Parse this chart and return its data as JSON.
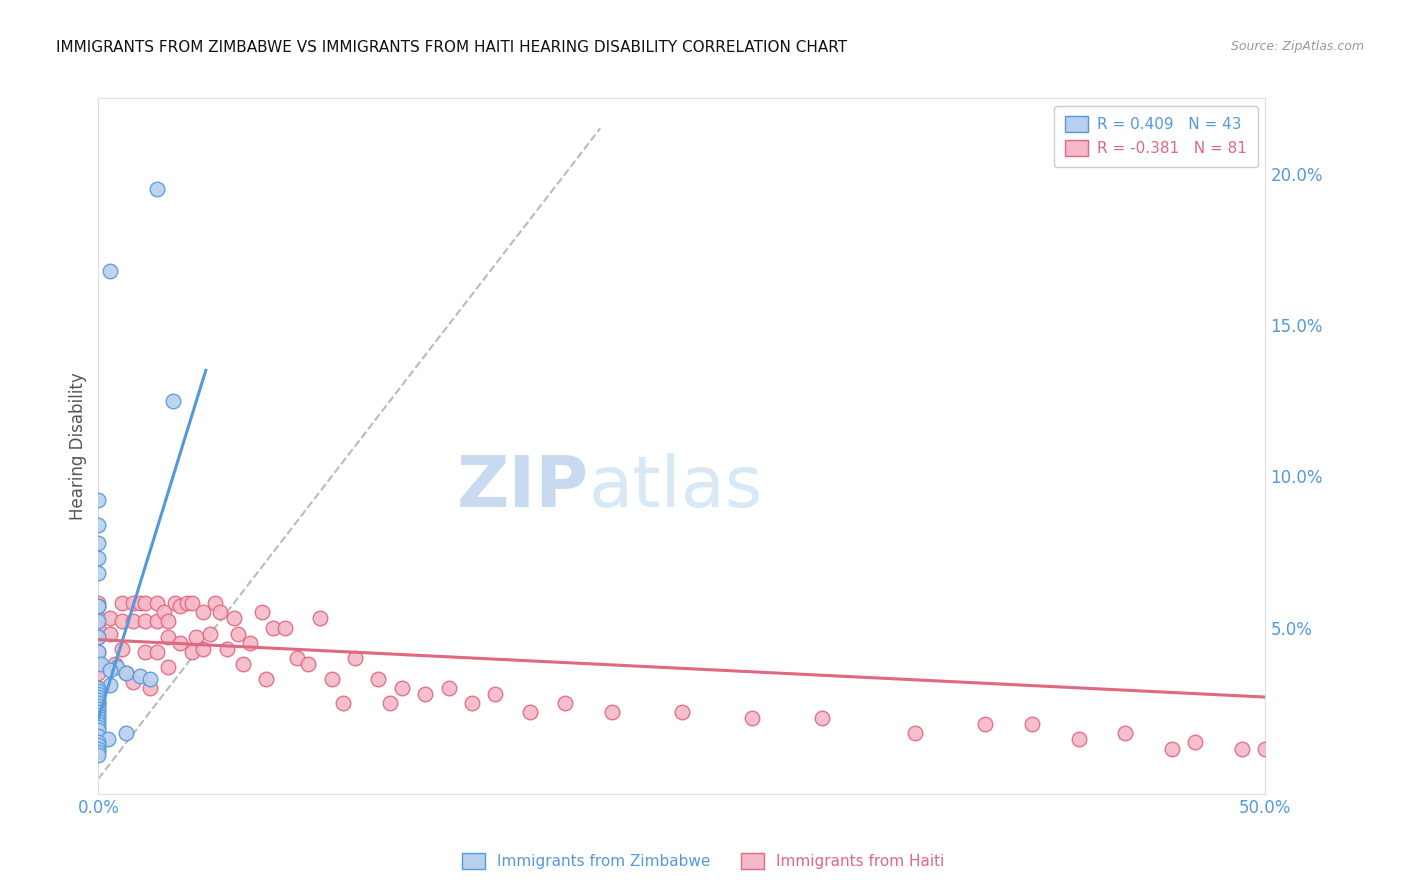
{
  "title": "IMMIGRANTS FROM ZIMBABWE VS IMMIGRANTS FROM HAITI HEARING DISABILITY CORRELATION CHART",
  "source": "Source: ZipAtlas.com",
  "ylabel": "Hearing Disability",
  "right_yticks": [
    "20.0%",
    "15.0%",
    "10.0%",
    "5.0%"
  ],
  "right_ytick_vals": [
    0.2,
    0.15,
    0.1,
    0.05
  ],
  "xlim": [
    0.0,
    0.5
  ],
  "ylim": [
    -0.005,
    0.225
  ],
  "color_zimbabwe": "#b8d0ee",
  "color_haiti": "#f5b8c8",
  "line_color_zimbabwe": "#5599dd",
  "line_color_haiti": "#e06880",
  "diagonal_color": "#bbbbbb",
  "background_color": "#ffffff",
  "grid_color": "#cccccc",
  "title_color": "#111111",
  "right_axis_color": "#5599dd",
  "tick_color": "#5599dd",
  "scatter_zimbabwe_x": [
    0.025,
    0.005,
    0.032,
    0.0,
    0.0,
    0.0,
    0.0,
    0.0,
    0.0,
    0.0,
    0.0,
    0.0,
    0.0,
    0.001,
    0.008,
    0.005,
    0.012,
    0.018,
    0.022,
    0.005,
    0.0,
    0.0,
    0.0,
    0.0,
    0.0,
    0.0,
    0.0,
    0.0,
    0.0,
    0.0,
    0.0,
    0.0,
    0.0,
    0.0,
    0.0,
    0.012,
    0.0,
    0.004,
    0.0,
    0.0,
    0.0,
    0.0,
    0.0
  ],
  "scatter_zimbabwe_y": [
    0.195,
    0.168,
    0.125,
    0.092,
    0.084,
    0.078,
    0.073,
    0.068,
    0.057,
    0.057,
    0.052,
    0.047,
    0.042,
    0.038,
    0.037,
    0.036,
    0.035,
    0.034,
    0.033,
    0.031,
    0.03,
    0.029,
    0.028,
    0.027,
    0.026,
    0.025,
    0.024,
    0.023,
    0.022,
    0.021,
    0.02,
    0.019,
    0.018,
    0.017,
    0.016,
    0.015,
    0.014,
    0.013,
    0.012,
    0.011,
    0.01,
    0.009,
    0.008
  ],
  "scatter_haiti_x": [
    0.0,
    0.0,
    0.0,
    0.0,
    0.0,
    0.0,
    0.0,
    0.0,
    0.0,
    0.0,
    0.005,
    0.005,
    0.007,
    0.01,
    0.01,
    0.01,
    0.012,
    0.015,
    0.015,
    0.015,
    0.018,
    0.02,
    0.02,
    0.02,
    0.022,
    0.025,
    0.025,
    0.025,
    0.028,
    0.03,
    0.03,
    0.03,
    0.033,
    0.035,
    0.035,
    0.038,
    0.04,
    0.04,
    0.042,
    0.045,
    0.045,
    0.048,
    0.05,
    0.052,
    0.055,
    0.058,
    0.06,
    0.062,
    0.065,
    0.07,
    0.072,
    0.075,
    0.08,
    0.085,
    0.09,
    0.095,
    0.1,
    0.105,
    0.11,
    0.12,
    0.125,
    0.13,
    0.14,
    0.15,
    0.16,
    0.17,
    0.185,
    0.2,
    0.22,
    0.25,
    0.28,
    0.31,
    0.35,
    0.38,
    0.4,
    0.42,
    0.44,
    0.46,
    0.47,
    0.49,
    0.5
  ],
  "scatter_haiti_y": [
    0.058,
    0.053,
    0.05,
    0.047,
    0.042,
    0.038,
    0.035,
    0.03,
    0.025,
    0.01,
    0.053,
    0.048,
    0.038,
    0.058,
    0.052,
    0.043,
    0.035,
    0.058,
    0.052,
    0.032,
    0.058,
    0.058,
    0.052,
    0.042,
    0.03,
    0.058,
    0.052,
    0.042,
    0.055,
    0.052,
    0.047,
    0.037,
    0.058,
    0.057,
    0.045,
    0.058,
    0.058,
    0.042,
    0.047,
    0.055,
    0.043,
    0.048,
    0.058,
    0.055,
    0.043,
    0.053,
    0.048,
    0.038,
    0.045,
    0.055,
    0.033,
    0.05,
    0.05,
    0.04,
    0.038,
    0.053,
    0.033,
    0.025,
    0.04,
    0.033,
    0.025,
    0.03,
    0.028,
    0.03,
    0.025,
    0.028,
    0.022,
    0.025,
    0.022,
    0.022,
    0.02,
    0.02,
    0.015,
    0.018,
    0.018,
    0.013,
    0.015,
    0.01,
    0.012,
    0.01,
    0.01
  ],
  "zim_line_x": [
    0.0,
    0.046
  ],
  "zim_line_y": [
    0.02,
    0.135
  ],
  "haiti_line_x": [
    0.0,
    0.5
  ],
  "haiti_line_y": [
    0.046,
    0.027
  ],
  "diag_line_x": [
    0.0,
    0.215
  ],
  "diag_line_y": [
    0.0,
    0.215
  ]
}
